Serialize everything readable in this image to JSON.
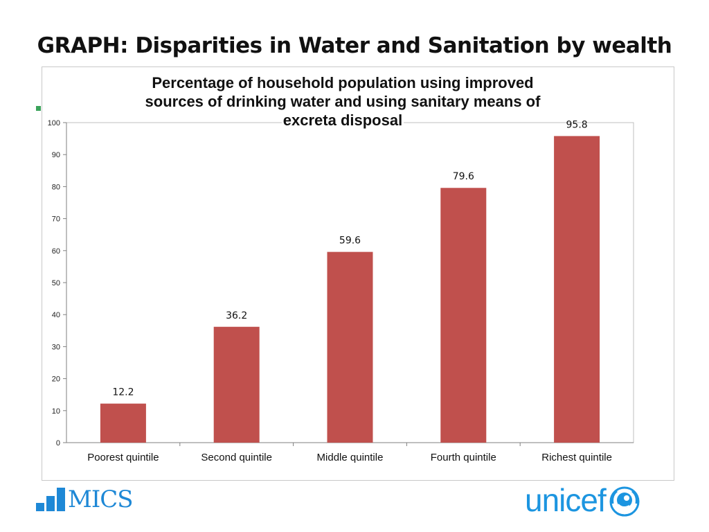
{
  "slide": {
    "title": "GRAPH: Disparities in Water and Sanitation by wealth"
  },
  "logos": {
    "mics_text": "MICS",
    "unicef_text": "unicef"
  },
  "colors": {
    "bar": "#c0504d",
    "brand_blue": "#1c95e0",
    "bullet": "#3aa35a"
  },
  "chart_data": {
    "type": "bar",
    "title_lines": [
      "Percentage of household population using improved",
      "sources of drinking water and using sanitary means of",
      "excreta disposal"
    ],
    "categories": [
      "Poorest quintile",
      "Second quintile",
      "Middle quintile",
      "Fourth quintile",
      "Richest quintile"
    ],
    "values": [
      12.2,
      36.2,
      59.6,
      79.6,
      95.8
    ],
    "value_labels": [
      "12.2",
      "36.2",
      "59.6",
      "79.6",
      "95.8"
    ],
    "yticks": [
      0,
      10,
      20,
      30,
      40,
      50,
      60,
      70,
      80,
      90,
      100
    ],
    "ylim": [
      0,
      100
    ],
    "xlabel": "",
    "ylabel": "",
    "grid": false,
    "legend": "none"
  }
}
